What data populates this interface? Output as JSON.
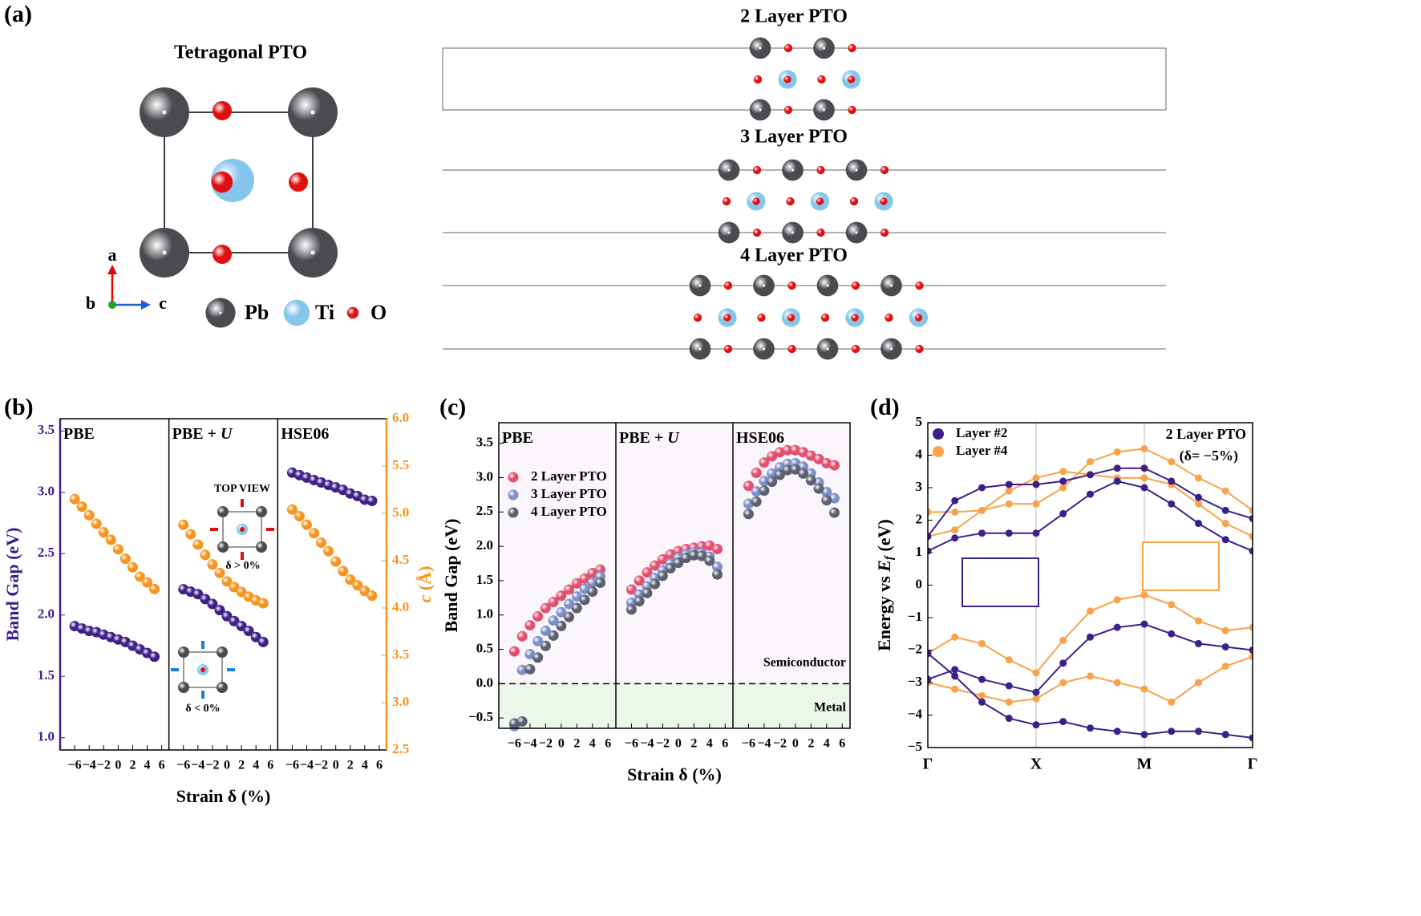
{
  "panel_a": {
    "label": "(a)",
    "title": "Tetragonal PTO",
    "axes": [
      "a",
      "b",
      "c"
    ],
    "legend": [
      "Pb",
      "Ti",
      "O"
    ],
    "layers": [
      "2 Layer PTO",
      "3 Layer PTO",
      "4 Layer PTO"
    ]
  },
  "chart_data": [
    {
      "type": "scatter",
      "panel_label": "(b)",
      "xlabel": "Strain δ (%)",
      "ylabel": "Band Gap (eV)",
      "y2label_var": "c",
      "y2label_unit": " (Å)",
      "y_axis_color": "#3d1f8a",
      "y2_axis_color": "#f7941d",
      "xlim": [
        -8,
        7
      ],
      "xticks": [
        {
          "value": -6,
          "label": "−6"
        },
        {
          "value": -4,
          "label": "−4"
        },
        {
          "value": -2,
          "label": "−2"
        },
        0,
        2,
        4,
        6
      ],
      "ylim": [
        0.9,
        3.6
      ],
      "yticks": [
        {
          "value": 1,
          "label": "1.0"
        },
        1.5,
        {
          "value": 2,
          "label": "2.0"
        },
        2.5,
        {
          "value": 3,
          "label": "3.0"
        },
        3.5
      ],
      "y2lim": [
        2.5,
        6.0
      ],
      "y2ticks": [
        2.5,
        {
          "value": 3,
          "label": "3.0"
        },
        3.5,
        {
          "value": 4,
          "label": "4.0"
        },
        4.5,
        {
          "value": 5,
          "label": "5.0"
        },
        5.5,
        {
          "value": 6,
          "label": "6.0"
        }
      ],
      "x": [
        -6,
        -5,
        -4,
        -3,
        -2,
        -1,
        0,
        1,
        2,
        3,
        4,
        5
      ],
      "series": [
        {
          "color": "#3d1f8a"
        },
        {
          "color": "#f7941d",
          "axis": "y2"
        }
      ],
      "annotations": [
        "TOP VIEW",
        "δ > 0%",
        "δ < 0%"
      ],
      "subplots": [
        {
          "title": "PBE",
          "values": [
            [
              1.91,
              1.89,
              1.87,
              1.86,
              1.84,
              1.82,
              1.8,
              1.78,
              1.75,
              1.72,
              1.69,
              1.66
            ],
            [
              5.15,
              5.07,
              4.98,
              4.89,
              4.8,
              4.72,
              4.62,
              4.52,
              4.43,
              4.33,
              4.27,
              4.2
            ]
          ]
        },
        {
          "title": "PBE + ",
          "title_var": "U",
          "values": [
            [
              2.21,
              2.19,
              2.17,
              2.13,
              2.09,
              2.04,
              1.99,
              1.95,
              1.91,
              1.87,
              1.82,
              1.78
            ],
            [
              4.88,
              4.78,
              4.67,
              4.56,
              4.46,
              4.37,
              4.28,
              4.22,
              4.17,
              4.12,
              4.08,
              4.05
            ]
          ]
        },
        {
          "title": "HSE06",
          "values": [
            [
              3.16,
              3.14,
              3.12,
              3.1,
              3.08,
              3.06,
              3.04,
              3.02,
              2.99,
              2.97,
              2.94,
              2.93
            ],
            [
              5.04,
              4.97,
              4.88,
              4.79,
              4.69,
              4.6,
              4.49,
              4.39,
              4.3,
              4.24,
              4.18,
              4.13
            ]
          ]
        }
      ]
    },
    {
      "type": "scatter",
      "panel_label": "(c)",
      "xlabel": "Strain δ (%)",
      "ylabel": "Band Gap (eV)",
      "xlim": [
        -8,
        7
      ],
      "xticks": [
        {
          "value": -6,
          "label": "−6"
        },
        {
          "value": -4,
          "label": "−4"
        },
        {
          "value": -2,
          "label": "−2"
        },
        0,
        2,
        4,
        6
      ],
      "ylim": [
        -0.65,
        3.8
      ],
      "yticks": [
        {
          "value": -0.5,
          "label": "−0.5"
        },
        {
          "value": 0,
          "label": "0.0"
        },
        0.5,
        {
          "value": 1,
          "label": "1.0"
        },
        1.5,
        {
          "value": 2,
          "label": "2.0"
        },
        2.5,
        {
          "value": 3,
          "label": "3.0"
        },
        3.5
      ],
      "x": [
        -6,
        -5,
        -4,
        -3,
        -2,
        -1,
        0,
        1,
        2,
        3,
        4,
        5
      ],
      "hline": 0,
      "background": "#fbf6fb",
      "region_color": "#edf6ea",
      "annotations": [
        "Semiconductor",
        "Metal"
      ],
      "series": [
        {
          "name": "2 Layer PTO",
          "color": "#e34f6f"
        },
        {
          "name": "3 Layer PTO",
          "color": "#7d8fc8"
        },
        {
          "name": "4 Layer PTO",
          "color": "#5b5f72"
        }
      ],
      "subplots": [
        {
          "title": "PBE",
          "values": [
            [
              0.47,
              0.69,
              0.85,
              0.98,
              1.1,
              1.19,
              1.28,
              1.37,
              1.46,
              1.53,
              1.61,
              1.66
            ],
            [
              -0.62,
              0.2,
              0.43,
              0.62,
              0.77,
              0.92,
              1.04,
              1.16,
              1.27,
              1.38,
              1.47,
              1.56
            ],
            [
              -0.58,
              -0.55,
              0.21,
              0.38,
              0.55,
              0.7,
              0.84,
              0.97,
              1.1,
              1.22,
              1.34,
              1.47
            ]
          ]
        },
        {
          "title": "PBE + ",
          "title_var": "U",
          "values": [
            [
              1.37,
              1.5,
              1.62,
              1.72,
              1.81,
              1.88,
              1.93,
              1.96,
              1.98,
              2.0,
              2.01,
              1.96
            ],
            [
              1.18,
              1.3,
              1.42,
              1.54,
              1.65,
              1.75,
              1.83,
              1.88,
              1.91,
              1.9,
              1.85,
              1.7
            ],
            [
              1.08,
              1.2,
              1.32,
              1.45,
              1.57,
              1.68,
              1.76,
              1.83,
              1.87,
              1.86,
              1.79,
              1.59
            ]
          ]
        },
        {
          "title": "HSE06",
          "values": [
            [
              2.88,
              3.07,
              3.22,
              3.31,
              3.37,
              3.4,
              3.4,
              3.37,
              3.32,
              3.27,
              3.21,
              3.18
            ],
            [
              2.62,
              2.8,
              2.95,
              3.06,
              3.15,
              3.2,
              3.21,
              3.16,
              3.06,
              2.93,
              2.79,
              2.7
            ],
            [
              2.47,
              2.65,
              2.81,
              2.94,
              3.04,
              3.11,
              3.12,
              3.06,
              2.96,
              2.84,
              2.67,
              2.49
            ]
          ]
        }
      ]
    },
    {
      "type": "band",
      "panel_label": "(d)",
      "title": "2 Layer PTO",
      "subtitle": "(δ= −5%)",
      "ylabel": "Energy vs ",
      "ylabel_var": "E",
      "ylabel_sub": "f",
      "ylabel_unit": " (eV)",
      "xlim": [
        0,
        3
      ],
      "xticks": [
        {
          "value": 0,
          "label": "Γ"
        },
        {
          "value": 1,
          "label": "X"
        },
        {
          "value": 2,
          "label": "M"
        },
        {
          "value": 3,
          "label": "Γ"
        }
      ],
      "ylim": [
        -5,
        5
      ],
      "yticks": [
        {
          "value": -5,
          "label": "−5"
        },
        {
          "value": -4,
          "label": "−4"
        },
        {
          "value": -3,
          "label": "−3"
        },
        {
          "value": -2,
          "label": "−2"
        },
        {
          "value": -1,
          "label": "−1"
        },
        0,
        1,
        2,
        3,
        4,
        5
      ],
      "x": [
        0,
        0.25,
        0.5,
        0.75,
        1,
        1.25,
        1.5,
        1.75,
        2,
        2.25,
        2.5,
        2.75,
        3
      ],
      "series": [
        {
          "name": "Layer #2",
          "color": "#3d1f8a",
          "bands": [
            [
              1.05,
              1.45,
              1.6,
              1.6,
              1.6,
              2.2,
              2.8,
              3.2,
              3.0,
              2.5,
              1.9,
              1.4,
              1.05
            ],
            [
              1.5,
              2.6,
              3.0,
              3.1,
              3.1,
              3.2,
              3.4,
              3.6,
              3.6,
              3.2,
              2.7,
              2.3,
              2.05
            ],
            [
              -2.9,
              -2.6,
              -2.9,
              -3.1,
              -3.3,
              -2.4,
              -1.6,
              -1.3,
              -1.2,
              -1.5,
              -1.8,
              -1.9,
              -2.0
            ],
            [
              -2.1,
              -2.8,
              -3.6,
              -4.1,
              -4.3,
              -4.2,
              -4.4,
              -4.5,
              -4.6,
              -4.5,
              -4.5,
              -4.6,
              -4.7
            ]
          ]
        },
        {
          "name": "Layer #4",
          "color": "#f9a24b",
          "bands": [
            [
              1.5,
              1.7,
              2.3,
              2.5,
              2.5,
              3.0,
              3.8,
              4.1,
              4.2,
              3.8,
              3.3,
              2.9,
              2.3
            ],
            [
              2.25,
              2.25,
              2.3,
              2.9,
              3.3,
              3.5,
              3.4,
              3.3,
              3.3,
              3.1,
              2.5,
              1.9,
              1.5
            ],
            [
              -2.1,
              -1.6,
              -1.8,
              -2.3,
              -2.7,
              -1.7,
              -0.8,
              -0.45,
              -0.3,
              -0.6,
              -1.1,
              -1.4,
              -1.3
            ],
            [
              -3.0,
              -3.2,
              -3.4,
              -3.6,
              -3.5,
              -3.0,
              -2.8,
              -3.0,
              -3.2,
              -3.6,
              -3.0,
              -2.5,
              -2.2
            ]
          ]
        }
      ]
    }
  ]
}
